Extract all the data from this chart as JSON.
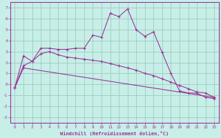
{
  "line1_x": [
    0,
    1,
    2,
    3,
    4,
    5,
    6,
    7,
    8,
    9,
    10,
    11,
    12,
    13,
    14,
    15,
    16,
    17,
    18,
    19,
    20,
    21,
    22,
    23
  ],
  "line1_y": [
    -0.3,
    2.6,
    2.1,
    3.3,
    3.3,
    3.2,
    3.2,
    3.3,
    3.3,
    4.5,
    4.3,
    6.5,
    6.2,
    6.9,
    5.0,
    4.4,
    4.8,
    2.9,
    1.0,
    -0.6,
    -0.8,
    -0.8,
    -1.2,
    -1.3
  ],
  "line2_x": [
    0,
    1,
    2,
    3,
    4,
    5,
    6,
    7,
    8,
    9,
    10,
    11,
    12,
    13,
    14,
    15,
    16,
    17,
    18,
    19,
    20,
    21,
    22,
    23
  ],
  "line2_y": [
    -0.3,
    1.7,
    2.1,
    2.8,
    3.0,
    2.7,
    2.5,
    2.4,
    2.3,
    2.2,
    2.1,
    1.9,
    1.7,
    1.5,
    1.3,
    1.0,
    0.8,
    0.5,
    0.2,
    -0.1,
    -0.4,
    -0.7,
    -0.8,
    -1.2
  ],
  "line3_x": [
    0,
    1,
    23
  ],
  "line3_y": [
    -0.3,
    1.5,
    -1.2
  ],
  "color": "#993399",
  "bg_color": "#c8eee8",
  "grid_color": "#99ccbb",
  "xlabel": "Windchill (Refroidissement éolien,°C)",
  "xlim": [
    -0.5,
    23.5
  ],
  "ylim": [
    -3.5,
    7.5
  ],
  "yticks": [
    -3,
    -2,
    -1,
    0,
    1,
    2,
    3,
    4,
    5,
    6,
    7
  ],
  "xticks": [
    0,
    1,
    2,
    3,
    4,
    5,
    6,
    7,
    8,
    9,
    10,
    11,
    12,
    13,
    14,
    15,
    16,
    17,
    18,
    19,
    20,
    21,
    22,
    23
  ]
}
